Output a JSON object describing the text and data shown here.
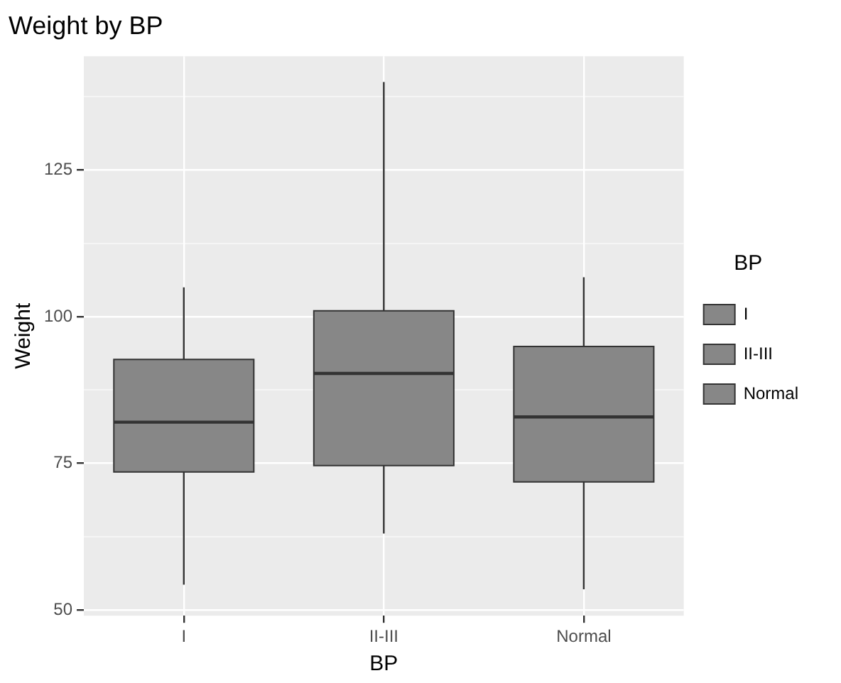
{
  "chart_data": {
    "type": "box",
    "title": "Weight by BP",
    "xlabel": "BP",
    "ylabel": "Weight",
    "legend_title": "BP",
    "categories": [
      "I",
      "II-III",
      "Normal"
    ],
    "series": [
      {
        "name": "I",
        "color": "#878787",
        "boxes": [
          {
            "low": 54.3,
            "q1": 73.5,
            "median": 82,
            "q3": 92.7,
            "high": 105
          },
          null,
          null
        ]
      },
      {
        "name": "II-III",
        "color": "#878787",
        "boxes": [
          null,
          {
            "low": 63,
            "q1": 74.6,
            "median": 90.3,
            "q3": 101,
            "high": 140
          },
          null
        ]
      },
      {
        "name": "Normal",
        "color": "#878787",
        "boxes": [
          null,
          null,
          {
            "low": 53.5,
            "q1": 71.8,
            "median": 82.9,
            "q3": 94.9,
            "high": 106.7
          }
        ]
      }
    ],
    "ylim": [
      49,
      144.4
    ],
    "yticks": [
      50,
      {
        "value": 62.5,
        "label": null
      },
      75,
      {
        "value": 87.5,
        "label": null
      },
      100,
      {
        "value": 112.5,
        "label": null
      },
      125,
      {
        "value": 137.5,
        "label": null
      }
    ],
    "grid": true,
    "legend": "right"
  }
}
